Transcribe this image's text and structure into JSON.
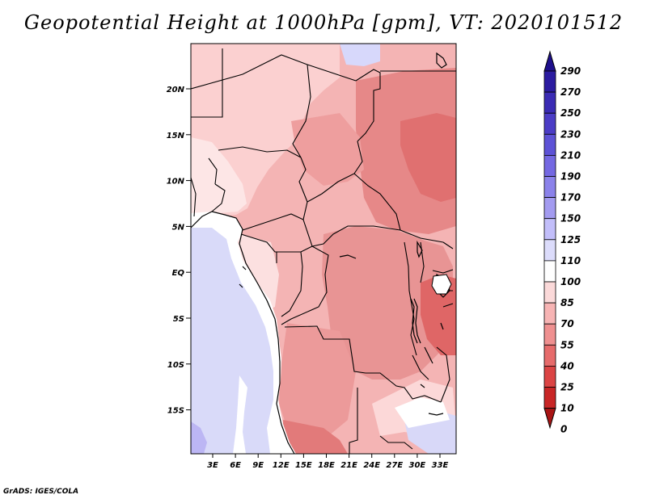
{
  "title": "Geopotential Height at 1000hPa [gpm], VT: 2020101512",
  "credit": "GrADS: IGES/COLA",
  "map": {
    "variable": "Geopotential Height",
    "level": "1000hPa",
    "units": "gpm",
    "valid_time": "2020101512",
    "lat_labels": [
      "20N",
      "15N",
      "10N",
      "5N",
      "EQ",
      "5S",
      "10S",
      "15S"
    ],
    "lon_labels": [
      "3E",
      "6E",
      "9E",
      "12E",
      "15E",
      "18E",
      "21E",
      "24E",
      "27E",
      "30E",
      "33E"
    ]
  },
  "colorbar": {
    "levels": [
      "290",
      "270",
      "250",
      "230",
      "210",
      "190",
      "170",
      "150",
      "125",
      "110",
      "100",
      "85",
      "70",
      "55",
      "40",
      "25",
      "10",
      "0"
    ],
    "colors": [
      "#1e0f8c",
      "#2b1ba0",
      "#3a2bb4",
      "#4b3cc6",
      "#5d52d6",
      "#7468e2",
      "#8b82ea",
      "#a39bf0",
      "#c2befa",
      "#dcdcfb",
      "#ffffff",
      "#fbd9d9",
      "#f7b4b4",
      "#ef9090",
      "#e66b6b",
      "#db4444",
      "#c82626",
      "#a81414"
    ]
  },
  "colors": {
    "ocean_low": "#d7d8fb",
    "ocean_deep": "#bab6f5",
    "coast_white": "#ffffff",
    "land_light": "#fbd3d3",
    "land_mid": "#f2a7a7",
    "land_dark": "#e68c8c",
    "land_darkest": "#df6e6e"
  }
}
